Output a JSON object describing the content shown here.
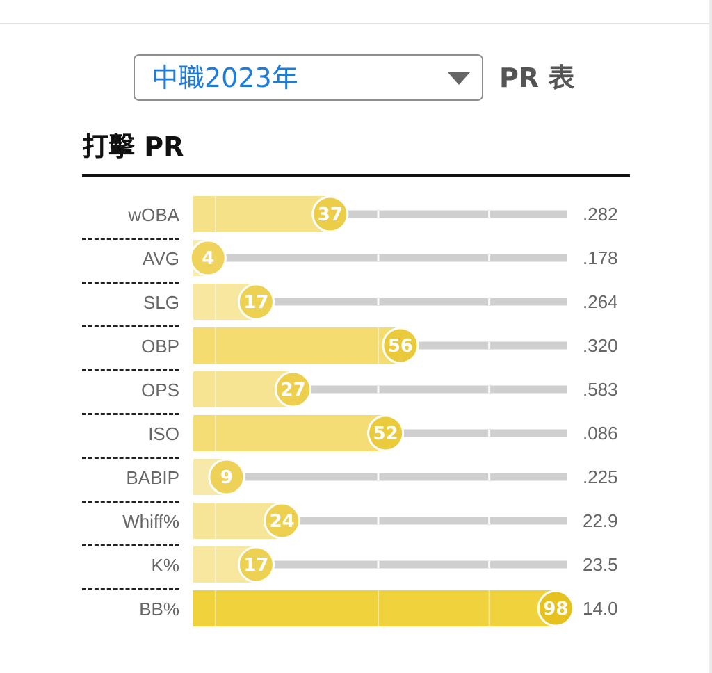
{
  "season_select": {
    "value": "中職2023年",
    "icon": "dropdown-caret-icon"
  },
  "pr_label": "PR 表",
  "section": {
    "title": "打擊 PR"
  },
  "colors": {
    "track": "#cfcfcf",
    "badge_text": "#ffffff",
    "fill_light": "#f8ebb4",
    "fill_dark": "#f0d13a",
    "badge_light": "#efd45e",
    "badge_dark": "#e6c220"
  },
  "chart_data": {
    "type": "bar",
    "orientation": "horizontal",
    "title": "打擊 PR",
    "xlim": [
      0,
      100
    ],
    "categories": [
      "wOBA",
      "AVG",
      "SLG",
      "OBP",
      "OPS",
      "ISO",
      "BABIP",
      "Whiff%",
      "K%",
      "BB%"
    ],
    "values": [
      37,
      4,
      17,
      56,
      27,
      52,
      9,
      24,
      17,
      98
    ],
    "stat_values": [
      ".282",
      ".178",
      ".264",
      ".320",
      ".583",
      ".086",
      ".225",
      "22.9",
      "23.5",
      "14.0"
    ]
  }
}
